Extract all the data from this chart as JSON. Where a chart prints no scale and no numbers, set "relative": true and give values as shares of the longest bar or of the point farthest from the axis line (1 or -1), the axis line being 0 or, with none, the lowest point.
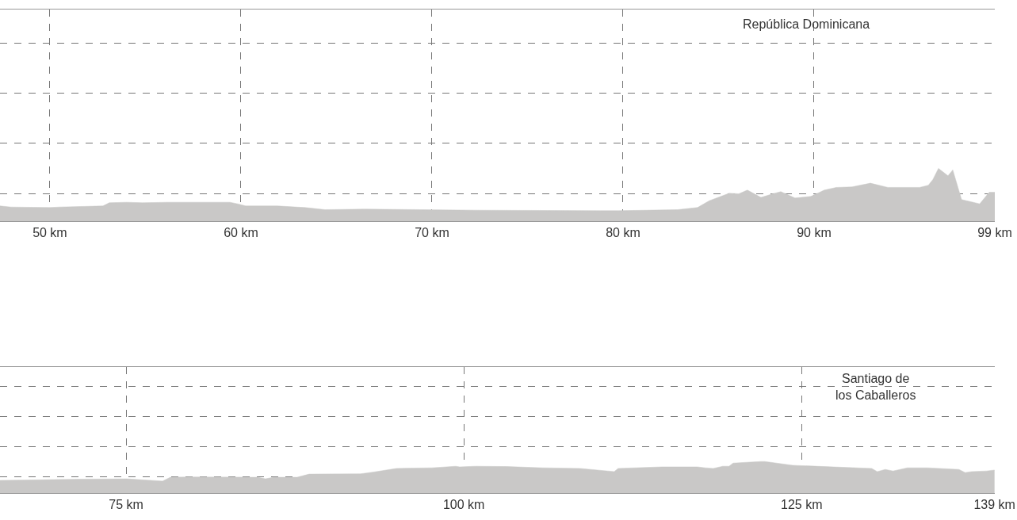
{
  "chart_data": [
    {
      "type": "area",
      "relative": true,
      "grid": true,
      "color": "#c9c8c7",
      "x": [
        47.39,
        47.97,
        50,
        50.5,
        52.78,
        53.11,
        54.02,
        54.85,
        56.18,
        59.42,
        59.83,
        60.25,
        61.91,
        63.36,
        64.4,
        66.47,
        69.38,
        72.28,
        78.92,
        79.75,
        82.86,
        83.9,
        84.52,
        85.56,
        86.06,
        86.51,
        87.22,
        87.84,
        88.26,
        89.0,
        89.83,
        90.54,
        91.16,
        91.99,
        92.95,
        93.86,
        94.69,
        95.52,
        95.98,
        96.22,
        96.51,
        97.01,
        97.26,
        97.72,
        98.67,
        99.17,
        99.46
      ],
      "values": [
        0.29,
        0.27,
        0.26,
        0.27,
        0.29,
        0.35,
        0.36,
        0.35,
        0.36,
        0.36,
        0.33,
        0.29,
        0.29,
        0.26,
        0.22,
        0.23,
        0.22,
        0.21,
        0.2,
        0.2,
        0.22,
        0.26,
        0.39,
        0.53,
        0.52,
        0.59,
        0.45,
        0.52,
        0.56,
        0.44,
        0.47,
        0.59,
        0.64,
        0.65,
        0.72,
        0.64,
        0.64,
        0.64,
        0.68,
        0.79,
        1,
        0.86,
        0.97,
        0.41,
        0.33,
        0.55,
        0.55
      ],
      "xlim": [
        47.39,
        99.46
      ],
      "xticks": [
        {
          "value": 50,
          "label": "50 km"
        },
        {
          "value": 60,
          "label": "60 km"
        },
        {
          "value": 70,
          "label": "70 km"
        },
        {
          "value": 80,
          "label": "80 km"
        },
        {
          "value": 90,
          "label": "90 km"
        },
        {
          "value": 99.46,
          "label": "99 km"
        }
      ],
      "annotations": [
        "República Dominicana"
      ]
    },
    {
      "type": "area",
      "relative": true,
      "grid": true,
      "color": "#c9c8c7",
      "x": [
        65.67,
        71.54,
        75.06,
        77.7,
        78.28,
        79.75,
        84.74,
        85.32,
        85.91,
        87.67,
        88.55,
        92.36,
        93.24,
        95.0,
        97.64,
        99.4,
        99.69,
        100.86,
        103.21,
        105.85,
        108.61,
        111.13,
        111.42,
        114.65,
        117.29,
        117.87,
        118.46,
        119.16,
        119.63,
        119.93,
        121.98,
        122.27,
        124.33,
        130.19,
        130.6,
        131.19,
        131.77,
        132.83,
        134.3,
        136.64,
        137.11,
        137.58,
        138.7,
        139.28
      ],
      "values": [
        0.4,
        0.44,
        0.45,
        0.38,
        0.5,
        0.51,
        0.5,
        0.45,
        0.5,
        0.5,
        0.6,
        0.61,
        0.66,
        0.78,
        0.8,
        0.85,
        0.83,
        0.85,
        0.84,
        0.8,
        0.78,
        0.68,
        0.78,
        0.83,
        0.83,
        0.8,
        0.78,
        0.85,
        0.85,
        0.95,
        1,
        1,
        0.88,
        0.78,
        0.68,
        0.75,
        0.7,
        0.8,
        0.8,
        0.75,
        0.65,
        0.68,
        0.7,
        0.73
      ],
      "xlim": [
        65.67,
        139.3
      ],
      "xticks": [
        {
          "value": 75,
          "label": "75 km"
        },
        {
          "value": 100,
          "label": "100 km"
        },
        {
          "value": 125,
          "label": "125 km"
        },
        {
          "value": 139.28,
          "label": "139 km"
        }
      ],
      "annotations": [
        "Santiago de\nlos Caballeros"
      ]
    }
  ]
}
